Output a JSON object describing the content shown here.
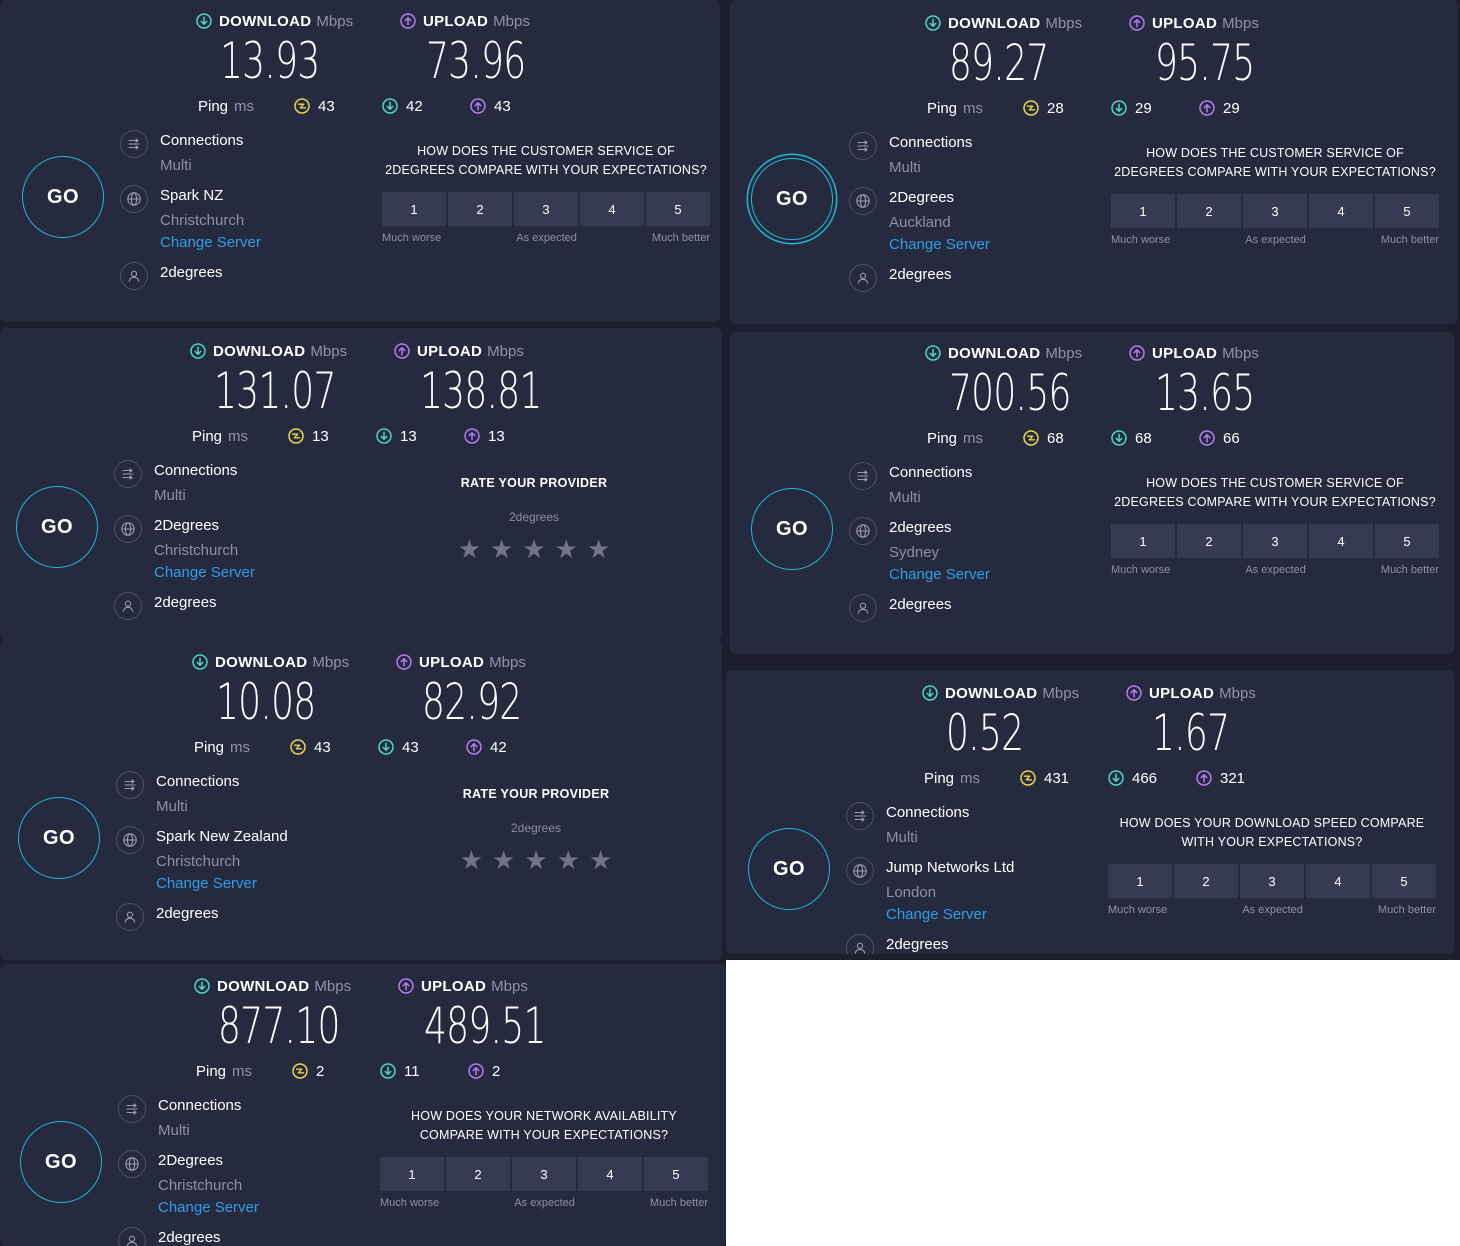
{
  "labels": {
    "download": "DOWNLOAD",
    "upload": "UPLOAD",
    "mbps": "Mbps",
    "ping": "Ping",
    "ms": "ms",
    "go": "GO",
    "connections": "Connections",
    "multi": "Multi",
    "change_server": "Change Server",
    "much_worse": "Much worse",
    "as_expected": "As expected",
    "much_better": "Much better",
    "rate_provider": "RATE YOUR PROVIDER"
  },
  "colors": {
    "panel": "#262a3f",
    "accent": "#1fb9d1",
    "download": "#4dd6c9",
    "upload": "#b27cf0",
    "jitter": "#e8d64a",
    "link": "#2f9ee6"
  },
  "icons": {
    "download": "arrow-down-circle-icon",
    "upload": "arrow-up-circle-icon",
    "jitter": "jitter-icon",
    "connections": "connections-icon",
    "server": "globe-icon",
    "isp": "user-icon",
    "star": "star-icon"
  },
  "panels": [
    {
      "id": "p1",
      "download": "13.93",
      "upload": "73.96",
      "ping": "43",
      "ping_down": "42",
      "ping_up": "43",
      "server": "Spark NZ",
      "location": "Christchurch",
      "isp": "2degrees",
      "survey_type": "scale",
      "question": "HOW DOES THE CUSTOMER SERVICE OF 2DEGREES COMPARE WITH YOUR EXPECTATIONS?",
      "scale": [
        "1",
        "2",
        "3",
        "4",
        "5"
      ],
      "double_ring": false
    },
    {
      "id": "p2",
      "download": "89.27",
      "upload": "95.75",
      "ping": "28",
      "ping_down": "29",
      "ping_up": "29",
      "server": "2Degrees",
      "location": "Auckland",
      "isp": "2degrees",
      "survey_type": "scale",
      "question": "HOW DOES THE CUSTOMER SERVICE OF 2DEGREES COMPARE WITH YOUR EXPECTATIONS?",
      "scale": [
        "1",
        "2",
        "3",
        "4",
        "5"
      ],
      "double_ring": true
    },
    {
      "id": "p3",
      "download": "131.07",
      "upload": "138.81",
      "ping": "13",
      "ping_down": "13",
      "ping_up": "13",
      "server": "2Degrees",
      "location": "Christchurch",
      "isp": "2degrees",
      "survey_type": "rate",
      "provider": "2degrees",
      "stars": 5,
      "double_ring": false
    },
    {
      "id": "p4",
      "download": "700.56",
      "upload": "13.65",
      "ping": "68",
      "ping_down": "68",
      "ping_up": "66",
      "server": "2degrees",
      "location": "Sydney",
      "isp": "2degrees",
      "survey_type": "scale",
      "question": "HOW DOES THE CUSTOMER SERVICE OF 2DEGREES COMPARE WITH YOUR EXPECTATIONS?",
      "scale": [
        "1",
        "2",
        "3",
        "4",
        "5"
      ],
      "double_ring": false
    },
    {
      "id": "p5",
      "download": "10.08",
      "upload": "82.92",
      "ping": "43",
      "ping_down": "43",
      "ping_up": "42",
      "server": "Spark New Zealand",
      "location": "Christchurch",
      "isp": "2degrees",
      "survey_type": "rate",
      "provider": "2degrees",
      "stars": 5,
      "double_ring": false
    },
    {
      "id": "p6",
      "download": "0.52",
      "upload": "1.67",
      "ping": "431",
      "ping_down": "466",
      "ping_up": "321",
      "server": "Jump Networks Ltd",
      "location": "London",
      "isp": "2degrees",
      "survey_type": "scale",
      "question": "HOW DOES YOUR DOWNLOAD SPEED COMPARE WITH YOUR EXPECTATIONS?",
      "scale": [
        "1",
        "2",
        "3",
        "4",
        "5"
      ],
      "double_ring": false
    },
    {
      "id": "p7",
      "download": "877.10",
      "upload": "489.51",
      "ping": "2",
      "ping_down": "11",
      "ping_up": "2",
      "server": "2Degrees",
      "location": "Christchurch",
      "isp": "2degrees",
      "survey_type": "scale",
      "question": "HOW DOES YOUR NETWORK AVAILABILITY COMPARE WITH YOUR EXPECTATIONS?",
      "scale": [
        "1",
        "2",
        "3",
        "4",
        "5"
      ],
      "double_ring": false
    }
  ]
}
